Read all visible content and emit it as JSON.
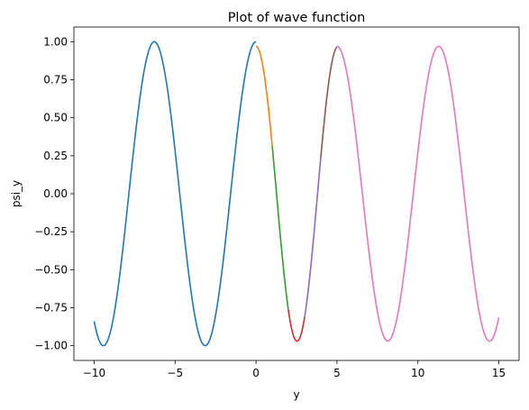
{
  "chart_data": {
    "type": "line",
    "title": "Plot of wave function",
    "xlabel": "y",
    "ylabel": "psi_y",
    "xlim": [
      -11.25,
      16.25
    ],
    "ylim": [
      -1.097,
      1.097
    ],
    "xticks": [
      -10,
      -5,
      0,
      5,
      10,
      15
    ],
    "yticks": [
      -1.0,
      -0.75,
      -0.5,
      -0.25,
      0.0,
      0.25,
      0.5,
      0.75,
      1.0
    ],
    "xtick_labels": [
      "−10",
      "−5",
      "0",
      "5",
      "10",
      "15"
    ],
    "ytick_labels": [
      "−1.00",
      "−0.75",
      "−0.50",
      "−0.25",
      "0.00",
      "0.25",
      "0.50",
      "0.75",
      "1.00"
    ],
    "grid": false,
    "series": [
      {
        "region": [
          -10,
          0
        ],
        "color": "#1f77b4",
        "amplitude": 1.0,
        "wavenumber": 1.0,
        "phase": 0.0,
        "mode": "cos"
      },
      {
        "region": [
          0,
          1
        ],
        "color": "#ff7f0e",
        "amplitude": 0.97,
        "wavenumber": 1.24,
        "phase": 0.0,
        "mode": "cos"
      },
      {
        "region": [
          1,
          2
        ],
        "color": "#2ca02c",
        "amplitude": 0.97,
        "wavenumber": 1.24,
        "phase": 0.0,
        "mode": "cos"
      },
      {
        "region": [
          2,
          3
        ],
        "color": "#d62728",
        "amplitude": 0.97,
        "wavenumber": 1.24,
        "phase": 0.0,
        "mode": "cos"
      },
      {
        "region": [
          3,
          4
        ],
        "color": "#9467bd",
        "amplitude": 0.97,
        "wavenumber": 1.24,
        "phase": 0.0,
        "mode": "cos"
      },
      {
        "region": [
          4,
          5
        ],
        "color": "#8c564b",
        "amplitude": 0.97,
        "wavenumber": 1.24,
        "phase": 0.0,
        "mode": "cos"
      },
      {
        "region": [
          5,
          15
        ],
        "color": "#e377c2",
        "amplitude": 0.97,
        "wavenumber": 1.0,
        "phase": 5.0,
        "mode": "cos-shift"
      }
    ]
  }
}
